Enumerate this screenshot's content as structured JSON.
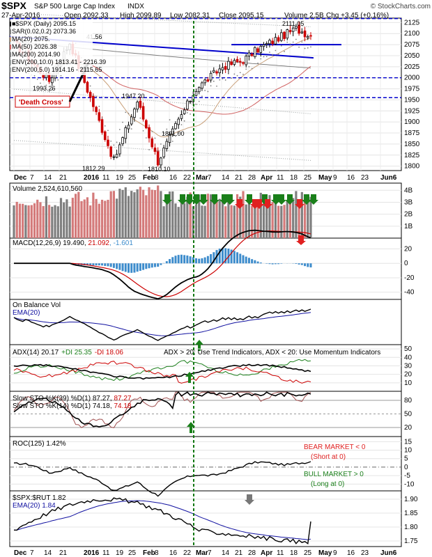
{
  "colors": {
    "up": "#000000",
    "down": "#cc0000",
    "vol_up": "#7f7f7f",
    "vol_down": "#d47a7a",
    "trend": "#0000cc",
    "sar": "#808080",
    "ma20": "#c9a07a",
    "ma50": "#d06060",
    "ma200": "#808080",
    "env": "#9aa0a0",
    "green_arrow": "#1a7f1a",
    "red_arrow": "#e02020",
    "macd_hist": "#3d8ccc",
    "ema": "#1010a0",
    "bear": "#e02020",
    "bull": "#1a7f1a"
  },
  "header": {
    "symbol": "$SPX",
    "name": "S&P 500 Large Cap Index",
    "exchange": "INDX",
    "watermark": "© StockCharts.com",
    "date": "27-Apr-2016",
    "open": "Open 2092.33",
    "high": "High 2099.89",
    "low": "Low 2082.31",
    "close": "Close 2095.15",
    "volume": "Volume 2.5B",
    "change": "Chg +3.45 (+0.16%)"
  },
  "price_panel": {
    "legend": [
      {
        "label": "■$SPX (Daily) 2095.15",
        "color": "#000000"
      },
      {
        "label": "SAR(0.02,0.2) 2073.36",
        "color": "#808080"
      },
      {
        "label": "MA(20) 2075.",
        "color": "#c9a07a"
      },
      {
        "label": "MA(50) 2026.38",
        "color": "#d06060"
      },
      {
        "label": "MA(200) 2014.90",
        "color": "#808080"
      },
      {
        "label": "ENV(200,10.0) 1813.41 - 2216.39",
        "color": "#9aa0a0"
      },
      {
        "label": "ENV(200,5.0) 1914.16 - 2115.65",
        "color": "#9aa0a0"
      }
    ],
    "yticks": [
      "2125",
      "2100",
      "2075",
      "2050",
      "2025",
      "2000",
      "1975",
      "1950",
      "1925",
      "1900",
      "1875",
      "1850",
      "1825",
      "1800"
    ],
    "price_labels": [
      "2111.05",
      "1993.26",
      "1947.20",
      "1891.00",
      "1812.29",
      "1810.10"
    ],
    "death_cross": "'Death Cross'",
    "extra_label": "41.56"
  },
  "x_axis_labels": [
    "Dec",
    "7",
    "14",
    "21",
    "2016",
    "11",
    "19",
    "25",
    "Feb",
    "8",
    "16",
    "22",
    "Mar",
    "7",
    "14",
    "21",
    "28",
    "Apr",
    "11",
    "18",
    "25",
    "May",
    "9",
    "16",
    "23",
    "Jun6"
  ],
  "volume_panel": {
    "title": "Volume 2,524,610,560",
    "yticks": [
      "4B",
      "3B",
      "2B",
      "1B"
    ]
  },
  "macd_panel": {
    "title_main": "MACD(12,26,9) 19.490, ",
    "title_signal": "21.092",
    "title_hist": ", -1.601",
    "yticks": [
      "20",
      "0",
      "-20",
      "-40"
    ]
  },
  "obv_panel": {
    "title": "On Balance Vol",
    "ema_label": "EMA(20)"
  },
  "adx_panel": {
    "title": "ADX(14) 20.17",
    "pdi": "+DI 25.35",
    "mdi": "-DI 18.06",
    "note": "ADX > 20: Use Trend Indicators, ADX < 20: Use Momentum Indicators",
    "yticks": [
      "50",
      "40",
      "30",
      "20",
      "10"
    ]
  },
  "sto_panel": {
    "title1": "Slow STO %K(39) %D(1) 87.27, ",
    "title1b": "87.27",
    "title2": "Slow STO %K(14) %D(1) 74.18, ",
    "title2b": "74.18",
    "yticks": [
      "80",
      "50",
      "20"
    ]
  },
  "roc_panel": {
    "title": "ROC(125) 1.42%",
    "bear": "BEAR MARKET < 0",
    "bear_sub": "(Short at 0)",
    "bull": "BULL MARKET > 0",
    "bull_sub": "(Long at 0)",
    "yticks": [
      "15",
      "10",
      "5",
      "0",
      "-5",
      "-10"
    ]
  },
  "ratio_panel": {
    "title": "$SPX:$RUT 1.82",
    "ema_label": "EMA(20) 1.84",
    "yticks": [
      "1.90",
      "1.85",
      "1.80",
      "1.75"
    ]
  },
  "chart_data": {
    "type": "candlestick",
    "title": "$SPX S&P 500 Large Cap Index INDX",
    "date_range": [
      "2015-12-01",
      "2016-04-27"
    ],
    "ohlc_last": {
      "open": 2092.33,
      "high": 2099.89,
      "low": 2082.31,
      "close": 2095.15
    },
    "price_key_points": [
      {
        "date": "2015-12-01",
        "price": 2080
      },
      {
        "date": "2015-12-18",
        "price": 1993.26
      },
      {
        "date": "2015-12-29",
        "price": 2080
      },
      {
        "date": "2016-01-20",
        "price": 1812.29
      },
      {
        "date": "2016-02-01",
        "price": 1947.2
      },
      {
        "date": "2016-02-11",
        "price": 1810.1
      },
      {
        "date": "2016-02-19",
        "price": 1891.0
      },
      {
        "date": "2016-03-01",
        "price": 1975
      },
      {
        "date": "2016-03-14",
        "price": 2025
      },
      {
        "date": "2016-03-24",
        "price": 2040
      },
      {
        "date": "2016-04-01",
        "price": 2065
      },
      {
        "date": "2016-04-20",
        "price": 2111.05
      },
      {
        "date": "2016-04-27",
        "price": 2095.15
      }
    ],
    "ylim": [
      1790,
      2135
    ],
    "horizontal_lines": [
      2134,
      1955,
      2000,
      2075
    ],
    "indicators": {
      "SAR": 2073.36,
      "MA20": 2075,
      "MA50": 2026.38,
      "MA200": 2014.9,
      "ENV10": [
        1813.41,
        2216.39
      ],
      "ENV5": [
        1914.16,
        2115.65
      ],
      "volume": 2524610560,
      "MACD": [
        19.49,
        21.092,
        -1.601
      ],
      "ADX": 20.17,
      "plusDI": 25.35,
      "minusDI": 18.06,
      "STO39": 87.27,
      "STO14": 74.18,
      "ROC125": 1.42,
      "SPX_RUT": 1.82,
      "SPX_RUT_EMA20": 1.84
    },
    "signal_date": "2016-03-01"
  }
}
